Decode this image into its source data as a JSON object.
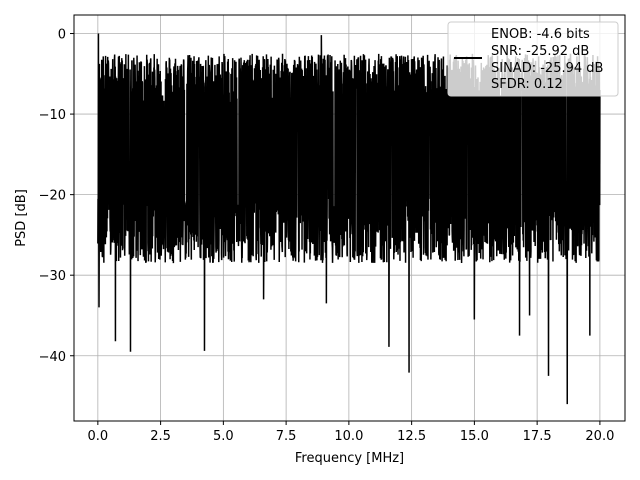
{
  "chart_data": {
    "type": "line",
    "xlabel": "Frequency [MHz]",
    "ylabel": "PSD [dB]",
    "xlim": [
      -0.95,
      21.0
    ],
    "ylim": [
      -48.1,
      2.3
    ],
    "xticks": [
      0.0,
      2.5,
      5.0,
      7.5,
      10.0,
      12.5,
      15.0,
      17.5,
      20.0
    ],
    "xtick_labels": [
      "0.0",
      "2.5",
      "5.0",
      "7.5",
      "10.0",
      "12.5",
      "15.0",
      "17.5",
      "20.0"
    ],
    "yticks": [
      0,
      -10,
      -20,
      -30,
      -40
    ],
    "ytick_labels": [
      "0",
      "−10",
      "−20",
      "−30",
      "−40"
    ],
    "grid": true,
    "legend": {
      "placement": "top-right",
      "lines": [
        "ENOB: -4.6 bits",
        "SNR: -25.92 dB",
        "SINAD: -25.94 dB",
        "SFDR: 0.12"
      ]
    },
    "series": [
      {
        "color": "#000000",
        "x_start": 0.0,
        "x_end": 20.0,
        "band_top": -6.5,
        "band_bottom": -26.5,
        "max_peak": {
          "x": 0.02,
          "y": 0.0
        },
        "deep_dips": [
          {
            "x": 0.05,
            "y": -34.0
          },
          {
            "x": 0.7,
            "y": -38.2
          },
          {
            "x": 1.3,
            "y": -39.5
          },
          {
            "x": 4.25,
            "y": -39.4
          },
          {
            "x": 6.6,
            "y": -33.0
          },
          {
            "x": 9.1,
            "y": -33.5
          },
          {
            "x": 11.6,
            "y": -38.9
          },
          {
            "x": 12.4,
            "y": -42.1
          },
          {
            "x": 15.0,
            "y": -35.5
          },
          {
            "x": 16.8,
            "y": -37.5
          },
          {
            "x": 17.2,
            "y": -35.0
          },
          {
            "x": 17.95,
            "y": -42.5
          },
          {
            "x": 18.7,
            "y": -46.0
          },
          {
            "x": 19.6,
            "y": -37.5
          }
        ],
        "high_peaks": [
          {
            "x": 0.1,
            "y": -8.0
          },
          {
            "x": 3.8,
            "y": -4.5
          },
          {
            "x": 5.5,
            "y": -3.5
          },
          {
            "x": 7.2,
            "y": -3.0
          },
          {
            "x": 8.9,
            "y": -0.2
          },
          {
            "x": 11.3,
            "y": -2.8
          },
          {
            "x": 14.6,
            "y": -4.0
          },
          {
            "x": 16.2,
            "y": -5.0
          },
          {
            "x": 18.9,
            "y": -4.5
          }
        ]
      }
    ]
  }
}
